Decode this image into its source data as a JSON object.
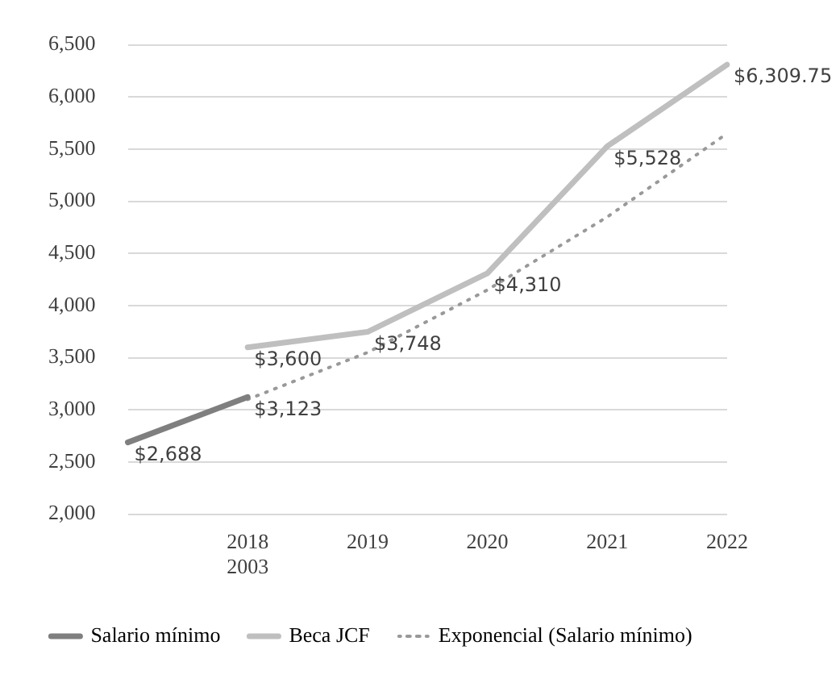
{
  "chart_data": {
    "type": "line",
    "categories": [
      null,
      "2018\n2003",
      "2019",
      "2020",
      "2021",
      "2022"
    ],
    "series": [
      {
        "name": "Salario mínimo",
        "color": "#7f7f7f",
        "values": [
          2688,
          3123,
          null,
          null,
          null,
          null
        ]
      },
      {
        "name": "Beca JCF",
        "color": "#bfbfbf",
        "values": [
          null,
          3600,
          3748,
          4310,
          5528,
          6309.75
        ]
      },
      {
        "name": "Exponencial (Salario mínimo)",
        "color": "#999999",
        "line_style": "dotted",
        "values": [
          null,
          3100,
          3550,
          4150,
          4850,
          5650
        ]
      }
    ],
    "value_labels": [
      [
        "$2,688",
        "$3,123",
        null,
        null,
        null,
        null
      ],
      [
        null,
        "$3,600",
        "$3,748",
        "$4,310",
        "$5,528",
        "$6,309.75"
      ],
      null
    ],
    "ylim": [
      2000,
      6500
    ],
    "yticks": [
      {
        "value": 2000,
        "label": "2,000"
      },
      {
        "value": 2500,
        "label": "2,500"
      },
      {
        "value": 3000,
        "label": "3,000"
      },
      {
        "value": 3500,
        "label": "3,500"
      },
      {
        "value": 4000,
        "label": "4,000"
      },
      {
        "value": 4500,
        "label": "4,500"
      },
      {
        "value": 5000,
        "label": "5,000"
      },
      {
        "value": 5500,
        "label": "5,500"
      },
      {
        "value": 6000,
        "label": "6,000"
      },
      {
        "value": 6500,
        "label": "6,500"
      }
    ],
    "grid": "y",
    "legend": "bottom",
    "marker": "none"
  }
}
